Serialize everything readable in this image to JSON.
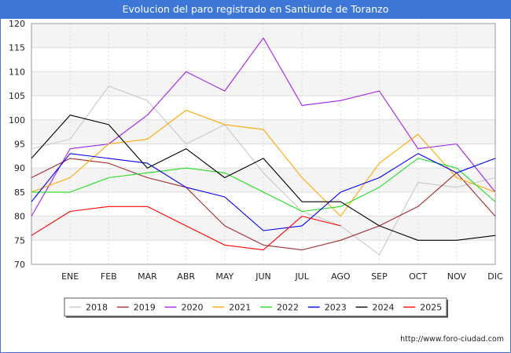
{
  "window": {
    "title": "Evolucion del paro registrado en Santiurde de Toranzo"
  },
  "source": "http://www.foro-ciudad.com",
  "chart_data": {
    "type": "line",
    "title": "Evolucion del paro registrado en Santiurde de Toranzo",
    "xlabel": "",
    "ylabel": "",
    "ylim": [
      70,
      120
    ],
    "y_ticks": [
      70,
      75,
      80,
      85,
      90,
      95,
      100,
      105,
      110,
      115,
      120
    ],
    "categories": [
      "",
      "ENE",
      "FEB",
      "MAR",
      "ABR",
      "MAY",
      "JUN",
      "JUL",
      "AGO",
      "SEP",
      "OCT",
      "NOV",
      "DIC"
    ],
    "grid": "horizontal",
    "legend_position": "bottom",
    "series": [
      {
        "name": "2018",
        "color": "#c8c8c8",
        "values": [
          94,
          96,
          107,
          104,
          95,
          99,
          89,
          81,
          78,
          72,
          87,
          86,
          88
        ]
      },
      {
        "name": "2019",
        "color": "#a52a2a",
        "values": [
          88,
          92,
          91,
          88,
          86,
          78,
          74,
          null,
          null,
          78,
          82,
          89,
          80
        ]
      },
      {
        "name": "2020",
        "color": "#a020f0",
        "values": [
          80,
          94,
          95,
          101,
          110,
          106,
          117,
          103,
          104,
          106,
          94,
          95,
          85
        ]
      },
      {
        "name": "2021",
        "color": "#ffa500",
        "values": [
          85,
          88,
          95,
          96,
          102,
          99,
          98,
          88,
          80,
          91,
          97,
          88,
          85
        ]
      },
      {
        "name": "2022",
        "color": "#22dd22",
        "values": [
          85,
          85,
          88,
          89,
          90,
          89,
          85,
          81,
          82,
          86,
          92,
          90,
          83
        ]
      },
      {
        "name": "2023",
        "color": "#0000ee",
        "values": [
          83,
          93,
          92,
          91,
          86,
          84,
          77,
          78,
          85,
          88,
          93,
          89,
          92
        ]
      },
      {
        "name": "2024",
        "color": "#000000",
        "values": [
          92,
          101,
          99,
          90,
          94,
          88,
          92,
          83,
          83,
          78,
          75,
          75,
          76
        ]
      },
      {
        "name": "2025",
        "color": "#ff0000",
        "values": [
          76,
          81,
          82,
          82,
          78,
          74,
          73,
          80,
          78,
          null,
          null,
          null,
          null
        ]
      }
    ],
    "extra_segments": [
      {
        "series": "2019",
        "points": [
          [
            6,
            74
          ],
          [
            7,
            73
          ],
          [
            8,
            75
          ],
          [
            9,
            78
          ]
        ]
      }
    ]
  }
}
